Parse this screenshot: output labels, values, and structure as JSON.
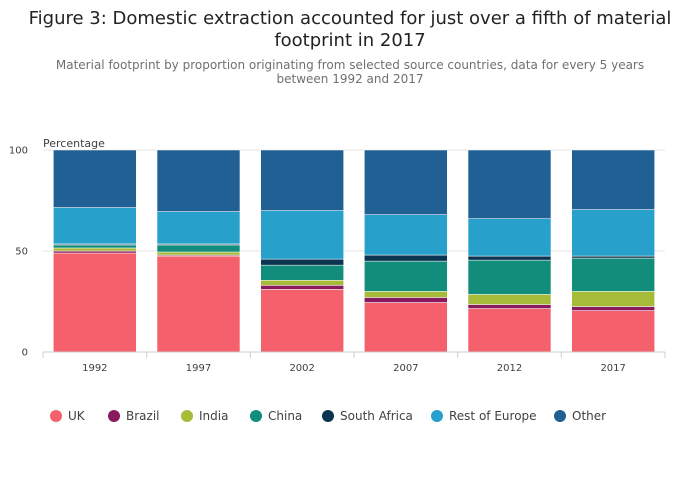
{
  "title": "Figure 3: Domestic extraction accounted for just over a fifth of material footprint in 2017",
  "subtitle": "Material footprint by proportion originating from selected source countries, data for every 5 years between 1992 and 2017",
  "chart_data": {
    "type": "bar",
    "stacked": true,
    "title": "Figure 3: Domestic extraction accounted for just over a fifth of material footprint in 2017",
    "ylabel": "Percentage",
    "xlabel": "",
    "ylim": [
      0,
      100
    ],
    "yticks": [
      0,
      50,
      100
    ],
    "categories": [
      "1992",
      "1997",
      "2002",
      "2007",
      "2012",
      "2017"
    ],
    "legend_position": "bottom",
    "series": [
      {
        "name": "UK",
        "color": "#f4606b",
        "values": [
          49.0,
          47.5,
          31.0,
          24.5,
          21.5,
          20.5
        ]
      },
      {
        "name": "Brazil",
        "color": "#8a1a5e",
        "values": [
          1.0,
          0.5,
          2.0,
          2.5,
          2.0,
          2.0
        ]
      },
      {
        "name": "India",
        "color": "#a6bb38",
        "values": [
          1.5,
          1.5,
          2.5,
          3.0,
          5.0,
          7.5
        ]
      },
      {
        "name": "China",
        "color": "#138d7b",
        "values": [
          1.5,
          3.5,
          7.5,
          15.0,
          17.0,
          16.5
        ]
      },
      {
        "name": "South Africa",
        "color": "#0a3452",
        "values": [
          0.5,
          0.5,
          3.0,
          3.0,
          2.0,
          1.0
        ]
      },
      {
        "name": "Rest of Europe",
        "color": "#27a0cc",
        "values": [
          18.0,
          16.0,
          24.0,
          20.0,
          18.5,
          23.0
        ]
      },
      {
        "name": "Other",
        "color": "#206095",
        "values": [
          28.5,
          30.5,
          30.0,
          32.0,
          34.0,
          29.5
        ]
      }
    ]
  }
}
